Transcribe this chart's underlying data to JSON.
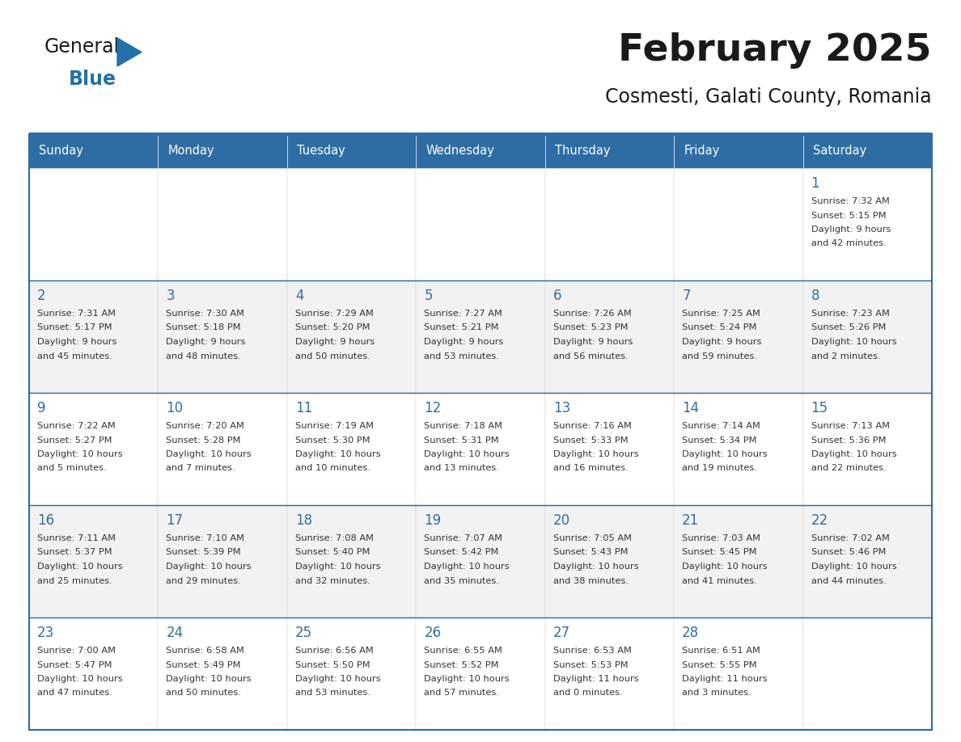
{
  "title": "February 2025",
  "subtitle": "Cosmesti, Galati County, Romania",
  "header_bg": "#2E6DA4",
  "header_text_color": "#FFFFFF",
  "cell_bg_even": "#FFFFFF",
  "cell_bg_odd": "#F2F2F2",
  "day_number_color": "#2E6DA4",
  "info_text_color": "#333333",
  "border_color": "#2E6DA4",
  "days_of_week": [
    "Sunday",
    "Monday",
    "Tuesday",
    "Wednesday",
    "Thursday",
    "Friday",
    "Saturday"
  ],
  "calendar_data": [
    [
      null,
      null,
      null,
      null,
      null,
      null,
      {
        "day": 1,
        "sunrise": "7:32 AM",
        "sunset": "5:15 PM",
        "daylight": "9 hours and 42 minutes."
      }
    ],
    [
      {
        "day": 2,
        "sunrise": "7:31 AM",
        "sunset": "5:17 PM",
        "daylight": "9 hours and 45 minutes."
      },
      {
        "day": 3,
        "sunrise": "7:30 AM",
        "sunset": "5:18 PM",
        "daylight": "9 hours and 48 minutes."
      },
      {
        "day": 4,
        "sunrise": "7:29 AM",
        "sunset": "5:20 PM",
        "daylight": "9 hours and 50 minutes."
      },
      {
        "day": 5,
        "sunrise": "7:27 AM",
        "sunset": "5:21 PM",
        "daylight": "9 hours and 53 minutes."
      },
      {
        "day": 6,
        "sunrise": "7:26 AM",
        "sunset": "5:23 PM",
        "daylight": "9 hours and 56 minutes."
      },
      {
        "day": 7,
        "sunrise": "7:25 AM",
        "sunset": "5:24 PM",
        "daylight": "9 hours and 59 minutes."
      },
      {
        "day": 8,
        "sunrise": "7:23 AM",
        "sunset": "5:26 PM",
        "daylight": "10 hours and 2 minutes."
      }
    ],
    [
      {
        "day": 9,
        "sunrise": "7:22 AM",
        "sunset": "5:27 PM",
        "daylight": "10 hours and 5 minutes."
      },
      {
        "day": 10,
        "sunrise": "7:20 AM",
        "sunset": "5:28 PM",
        "daylight": "10 hours and 7 minutes."
      },
      {
        "day": 11,
        "sunrise": "7:19 AM",
        "sunset": "5:30 PM",
        "daylight": "10 hours and 10 minutes."
      },
      {
        "day": 12,
        "sunrise": "7:18 AM",
        "sunset": "5:31 PM",
        "daylight": "10 hours and 13 minutes."
      },
      {
        "day": 13,
        "sunrise": "7:16 AM",
        "sunset": "5:33 PM",
        "daylight": "10 hours and 16 minutes."
      },
      {
        "day": 14,
        "sunrise": "7:14 AM",
        "sunset": "5:34 PM",
        "daylight": "10 hours and 19 minutes."
      },
      {
        "day": 15,
        "sunrise": "7:13 AM",
        "sunset": "5:36 PM",
        "daylight": "10 hours and 22 minutes."
      }
    ],
    [
      {
        "day": 16,
        "sunrise": "7:11 AM",
        "sunset": "5:37 PM",
        "daylight": "10 hours and 25 minutes."
      },
      {
        "day": 17,
        "sunrise": "7:10 AM",
        "sunset": "5:39 PM",
        "daylight": "10 hours and 29 minutes."
      },
      {
        "day": 18,
        "sunrise": "7:08 AM",
        "sunset": "5:40 PM",
        "daylight": "10 hours and 32 minutes."
      },
      {
        "day": 19,
        "sunrise": "7:07 AM",
        "sunset": "5:42 PM",
        "daylight": "10 hours and 35 minutes."
      },
      {
        "day": 20,
        "sunrise": "7:05 AM",
        "sunset": "5:43 PM",
        "daylight": "10 hours and 38 minutes."
      },
      {
        "day": 21,
        "sunrise": "7:03 AM",
        "sunset": "5:45 PM",
        "daylight": "10 hours and 41 minutes."
      },
      {
        "day": 22,
        "sunrise": "7:02 AM",
        "sunset": "5:46 PM",
        "daylight": "10 hours and 44 minutes."
      }
    ],
    [
      {
        "day": 23,
        "sunrise": "7:00 AM",
        "sunset": "5:47 PM",
        "daylight": "10 hours and 47 minutes."
      },
      {
        "day": 24,
        "sunrise": "6:58 AM",
        "sunset": "5:49 PM",
        "daylight": "10 hours and 50 minutes."
      },
      {
        "day": 25,
        "sunrise": "6:56 AM",
        "sunset": "5:50 PM",
        "daylight": "10 hours and 53 minutes."
      },
      {
        "day": 26,
        "sunrise": "6:55 AM",
        "sunset": "5:52 PM",
        "daylight": "10 hours and 57 minutes."
      },
      {
        "day": 27,
        "sunrise": "6:53 AM",
        "sunset": "5:53 PM",
        "daylight": "11 hours and 0 minutes."
      },
      {
        "day": 28,
        "sunrise": "6:51 AM",
        "sunset": "5:55 PM",
        "daylight": "11 hours and 3 minutes."
      },
      null
    ]
  ],
  "logo_color_general": "#1a1a1a",
  "logo_color_blue": "#2471A8",
  "logo_triangle_color": "#2471A8"
}
